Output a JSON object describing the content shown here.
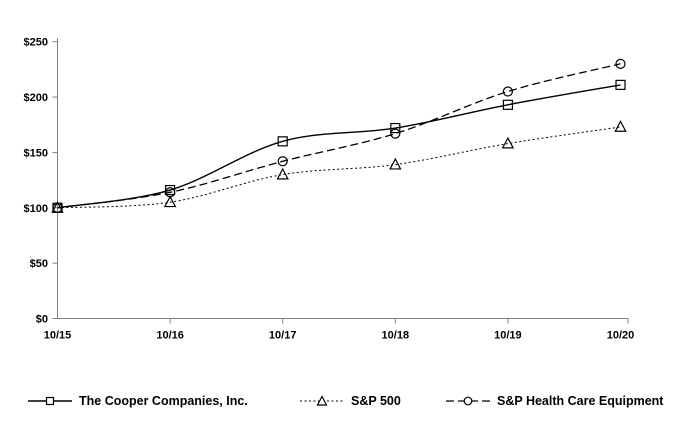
{
  "figure": {
    "background_color": "#ffffff",
    "line_color": "#000000"
  },
  "chart_data": {
    "type": "line",
    "title": "",
    "xlabel": "",
    "ylabel": "",
    "categories": [
      "10/15",
      "10/16",
      "10/17",
      "10/18",
      "10/19",
      "10/20"
    ],
    "series": [
      {
        "name": "The Cooper Companies, Inc.",
        "marker": "square",
        "line_style": "solid",
        "color": "#000000",
        "values": [
          100,
          116,
          160,
          172,
          193,
          211
        ]
      },
      {
        "name": "S&P 500",
        "marker": "triangle",
        "line_style": "dotted",
        "color": "#000000",
        "values": [
          100,
          105,
          130,
          139,
          158,
          173
        ]
      },
      {
        "name": "S&P Health Care Equipment",
        "marker": "circle",
        "line_style": "dashed",
        "color": "#000000",
        "values": [
          100,
          114,
          142,
          167,
          205,
          230
        ]
      }
    ],
    "ylim": [
      0,
      250
    ],
    "y_tick_step": 50,
    "y_tick_labels": [
      "$0",
      "$50",
      "$100",
      "$150",
      "$200",
      "$250"
    ],
    "grid": false,
    "smoothed_lines": true,
    "legend_position": "bottom"
  }
}
